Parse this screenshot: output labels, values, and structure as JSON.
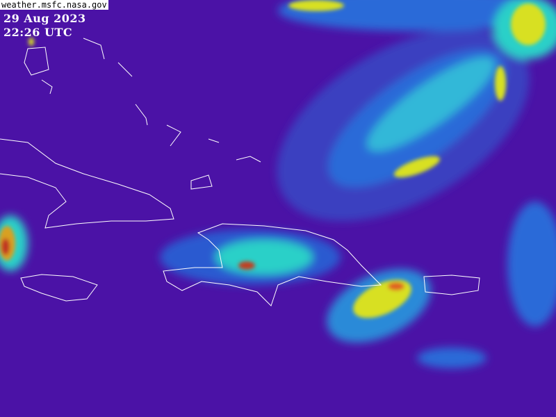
{
  "source_label": "weather.msfc.nasa.gov",
  "date": "29 Aug 2023",
  "time": "22:26 UTC",
  "colors": {
    "background": "#4b12a6",
    "low_cloud": "#2a5ad0",
    "mid_cloud": "#2ad0c8",
    "high_cloud": "#d8e020",
    "top_cloud": "#e06020",
    "coastline": "#ffffff"
  }
}
